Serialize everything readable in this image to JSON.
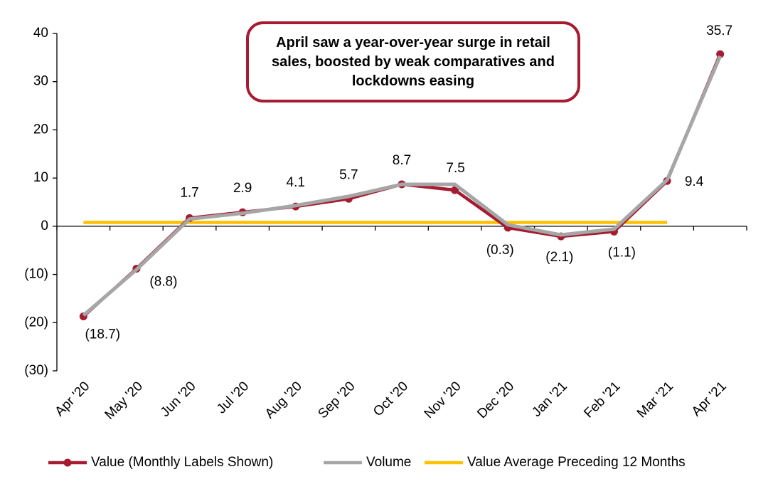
{
  "chart_data": {
    "type": "line",
    "annotation": "April saw a year-over-year surge in retail sales, boosted by weak comparatives and lockdowns easing",
    "categories": [
      "Apr '20",
      "May '20",
      "Jun '20",
      "Jul '20",
      "Aug '20",
      "Sep '20",
      "Oct '20",
      "Nov '20",
      "Dec '20",
      "Jan '21",
      "Feb '21",
      "Mar '21",
      "Apr '21"
    ],
    "series": [
      {
        "name": "Value (Monthly Labels Shown)",
        "color": "#a51c30",
        "markers": true,
        "values": [
          -18.7,
          -8.8,
          1.7,
          2.9,
          4.1,
          5.7,
          8.7,
          7.5,
          -0.3,
          -2.1,
          -1.1,
          9.4,
          35.7
        ],
        "value_labels": [
          "(18.7)",
          "(8.8)",
          "1.7",
          "2.9",
          "4.1",
          "5.7",
          "8.7",
          "7.5",
          "(0.3)",
          "(2.1)",
          "(1.1)",
          "9.4",
          "35.7"
        ]
      },
      {
        "name": "Volume",
        "color": "#a6a6a6",
        "markers": false,
        "values": [
          -18.5,
          -9.0,
          1.5,
          2.7,
          4.3,
          6.2,
          8.7,
          8.7,
          0.3,
          -1.8,
          -0.6,
          9.6,
          35.3
        ]
      },
      {
        "name": "Value Average Preceding 12 Months",
        "color": "#ffc000",
        "markers": false,
        "values": [
          0.8,
          0.8,
          0.8,
          0.8,
          0.8,
          0.8,
          0.8,
          0.8,
          0.8,
          0.8,
          0.8,
          0.8,
          null
        ]
      }
    ],
    "ylim": [
      -30,
      40
    ],
    "yticks": [
      40,
      30,
      20,
      10,
      0,
      {
        "value": -10,
        "label": "(10)"
      },
      {
        "value": -20,
        "label": "(20)"
      },
      {
        "value": -30,
        "label": "(30)"
      }
    ],
    "legend": "bottom"
  }
}
